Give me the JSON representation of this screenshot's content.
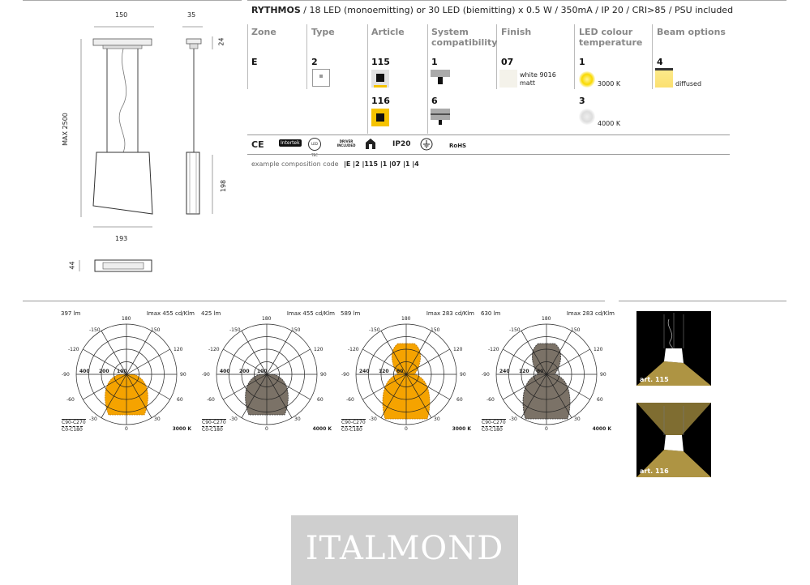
{
  "drawing": {
    "dim_width": "150",
    "dim_canopy": "35",
    "dim_canopy_h": "24",
    "dim_max": "MAX 2500",
    "dim_diffuser_w": "193",
    "dim_body_h": "198",
    "dim_bottom_h": "44"
  },
  "spec": {
    "title": "RYTHMOS",
    "subtitle": "/ 18 LED (monoemitting) or 30 LED (biemitting) x 0.5 W / 350mA / IP 20 / CRI>85 / PSU included",
    "headers": {
      "zone": "Zone",
      "type": "Type",
      "article": "Article",
      "system1": "System",
      "system2": "compatibility",
      "finish": "Finish",
      "led1": "LED colour",
      "led2": "temperature",
      "beam": "Beam options"
    },
    "zone": "E",
    "type": "2",
    "article_1": "115",
    "article_2": "116",
    "system_1": "1",
    "system_2": "6",
    "finish_code": "07",
    "finish_name1": "white 9016",
    "finish_name2": "matt",
    "led_1": "1",
    "led_1_temp": "3000 K",
    "led_2": "3",
    "led_2_temp": "4000 K",
    "beam_code": "4",
    "beam_name": "diffused",
    "cert_ce": "CE",
    "cert_intertek": "Intertek",
    "cert_ledtec": "LED TEC",
    "cert_driver": "DRIVER INCLUDED",
    "cert_ip": "IP20",
    "cert_rohs": "RoHS",
    "example_label": "example composition code",
    "example_code": "|E |2 |115 |1 |07 |1 |4"
  },
  "polar": [
    {
      "lm": "397 lm",
      "imax": "Imax 455 cd/Klm",
      "r1": "100",
      "r2": "200",
      "r3": "400",
      "c1": "C90-C270",
      "c2": "C0-C180",
      "temp": "3000 K",
      "fill": "#f5a300"
    },
    {
      "lm": "425 lm",
      "imax": "Imax 455 cd/Klm",
      "r1": "100",
      "r2": "200",
      "r3": "400",
      "c1": "C90-C270",
      "c2": "C0-C180",
      "temp": "4000 K",
      "fill": "#7b7267"
    },
    {
      "lm": "589 lm",
      "imax": "Imax 283 cd/Klm",
      "r1": "60",
      "r2": "120",
      "r3": "240",
      "c1": "C90-C270",
      "c2": "C0-C180",
      "temp": "3000 K",
      "fill": "#f5a300"
    },
    {
      "lm": "630 lm",
      "imax": "Imax 283 cd/Klm",
      "r1": "60",
      "r2": "120",
      "r3": "240",
      "c1": "C90-C270",
      "c2": "C0-C180",
      "temp": "4000 K",
      "fill": "#7b7267"
    }
  ],
  "angles": {
    "a180": "180",
    "am150": "-150",
    "a150": "150",
    "am120": "-120",
    "a120": "120",
    "am90": "-90",
    "a90": "90",
    "am60": "-60",
    "a60": "60",
    "am30": "-30",
    "a30": "30",
    "a0": "0"
  },
  "photos": {
    "art1": "art. 115",
    "art2": "art. 116"
  },
  "logo": "ITALMOND"
}
